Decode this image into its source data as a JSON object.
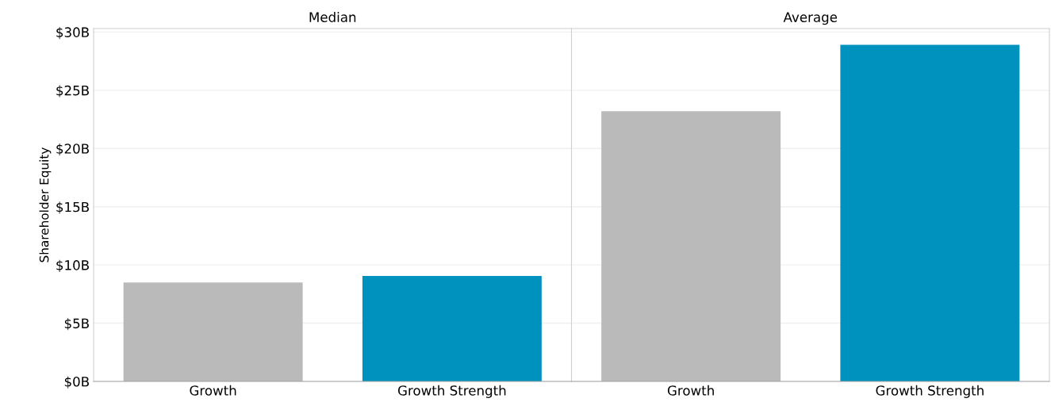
{
  "chart_data": [
    {
      "type": "bar",
      "title": "Median",
      "ylabel": "Shareholder Equity",
      "categories": [
        "Growth",
        "Growth Strength"
      ],
      "values": [
        8.5,
        9.05
      ],
      "colors": [
        "#bababa",
        "#0092bf"
      ],
      "ylim": [
        0,
        30.3
      ],
      "yticks": [
        {
          "value": 0,
          "label": "$0B"
        },
        {
          "value": 5,
          "label": "$5B"
        },
        {
          "value": 10,
          "label": "$10B"
        },
        {
          "value": 15,
          "label": "$15B"
        },
        {
          "value": 20,
          "label": "$20B"
        },
        {
          "value": 25,
          "label": "$25B"
        },
        {
          "value": 30,
          "label": "$30B"
        }
      ],
      "grid": "y"
    },
    {
      "type": "bar",
      "title": "Average",
      "categories": [
        "Growth",
        "Growth Strength"
      ],
      "values": [
        23.2,
        28.9
      ],
      "colors": [
        "#bababa",
        "#0092bf"
      ],
      "ylim": [
        0,
        30.3
      ],
      "yticks": [
        {
          "value": 0,
          "label": null
        },
        {
          "value": 5,
          "label": null
        },
        {
          "value": 10,
          "label": null
        },
        {
          "value": 15,
          "label": null
        },
        {
          "value": 20,
          "label": null
        },
        {
          "value": 25,
          "label": null
        },
        {
          "value": 30,
          "label": null
        }
      ],
      "grid": "y",
      "tick_labels": "x"
    }
  ]
}
